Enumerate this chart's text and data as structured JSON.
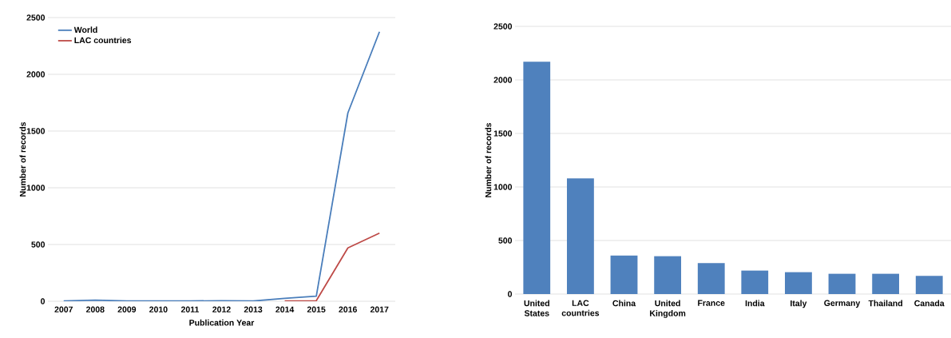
{
  "chart_data": [
    {
      "type": "line",
      "xlabel": "Publication Year",
      "ylabel": "Number of records",
      "categories": [
        "2007",
        "2008",
        "2009",
        "2010",
        "2011",
        "2012",
        "2013",
        "2014",
        "2015",
        "2016",
        "2017"
      ],
      "series": [
        {
          "name": "World",
          "color": "#4a7ebb",
          "values": [
            3,
            10,
            2,
            2,
            2,
            5,
            2,
            25,
            45,
            1660,
            2375
          ]
        },
        {
          "name": "LAC countries",
          "color": "#be4b48",
          "values": [
            null,
            null,
            null,
            null,
            null,
            null,
            null,
            2,
            5,
            470,
            600
          ]
        }
      ],
      "ylim": [
        0,
        2500
      ],
      "yticks": [
        0,
        500,
        1000,
        1500,
        2000,
        2500
      ],
      "grid": "y",
      "legend": "top left"
    },
    {
      "type": "bar",
      "ylabel": "Number of records",
      "categories": [
        "United States",
        "LAC countries",
        "China",
        "United Kingdom",
        "France",
        "India",
        "Italy",
        "Germany",
        "Thailand",
        "Canada"
      ],
      "values": [
        2170,
        1080,
        360,
        355,
        290,
        220,
        205,
        190,
        190,
        170
      ],
      "color": "#4f81bd",
      "ylim": [
        0,
        2500
      ],
      "yticks": [
        0,
        500,
        1000,
        1500,
        2000,
        2500
      ],
      "grid": "y"
    }
  ]
}
